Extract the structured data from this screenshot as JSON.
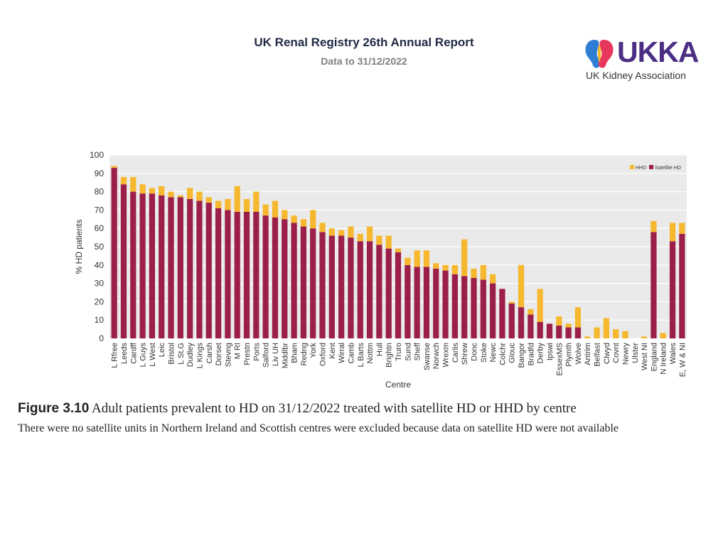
{
  "header": {
    "title": "UK Renal Registry 26th Annual Report",
    "subtitle": "Data to 31/12/2022"
  },
  "logo": {
    "wordmark": "UKKA",
    "name": "UK Kidney Association"
  },
  "caption": {
    "figure_label": "Figure 3.10",
    "title": "Adult patients prevalent to HD on 31/12/2022 treated with satellite HD or HHD by centre",
    "note": "There were no satellite units in Northern Ireland and Scottish centres were excluded because data on satellite HD were not available"
  },
  "colors": {
    "satellite": "#9c1f4a",
    "hhd": "#f5b82e",
    "grid": "#ffffff",
    "plot_bg": "#eaeaea"
  },
  "chart_data": {
    "type": "bar",
    "stacked": true,
    "title": "",
    "xlabel": "Centre",
    "ylabel": "% HD patients",
    "ylim": [
      0,
      100
    ],
    "yticks": [
      0,
      10,
      20,
      30,
      40,
      50,
      60,
      70,
      80,
      90,
      100
    ],
    "legend": {
      "position": "top-right",
      "entries": [
        "HHD",
        "Satellite HD"
      ]
    },
    "categories": [
      "L Rfree",
      "Leeds",
      "Cardff",
      "L Guys",
      "L West",
      "Leic",
      "Bristol",
      "L St.G",
      "Dudley",
      "L Kings",
      "Carsh",
      "Dorset",
      "Stevng",
      "M RI",
      "Prestn",
      "Ports",
      "Salford",
      "Liv UH",
      "Middlbr",
      "Bham",
      "Redng",
      "York",
      "Oxford",
      "Kent",
      "Wirral",
      "Camb",
      "L Barts",
      "Nottm",
      "Hull",
      "Brightn",
      "Truro",
      "Sund",
      "Sheff",
      "Swanse",
      "Norwch",
      "Wrexm",
      "Carlis",
      "Shrew",
      "Donc",
      "Stoke",
      "Newc",
      "Colchr",
      "Glouc",
      "Bangor",
      "Bradfd",
      "Derby",
      "Ipswi",
      "EssexMS",
      "Plymth",
      "Wolve",
      "Antrim",
      "Belfast",
      "Clwyd",
      "Covnt",
      "Newry",
      "Ulster",
      "West NI",
      "England",
      "N Ireland",
      "Wales",
      "E, W & NI"
    ],
    "series": [
      {
        "name": "Satellite HD",
        "values": [
          93,
          84,
          80,
          79,
          79,
          78,
          77,
          77,
          76,
          75,
          74,
          71,
          70,
          69,
          69,
          69,
          67,
          66,
          65,
          63,
          61,
          60,
          58,
          56,
          56,
          55,
          53,
          53,
          51,
          49,
          47,
          40,
          39,
          39,
          38,
          37,
          35,
          34,
          33,
          32,
          30,
          27,
          19,
          17,
          13,
          9,
          8,
          7,
          6,
          6,
          0,
          0,
          0,
          0,
          0,
          0,
          0,
          58,
          0,
          53,
          57
        ]
      },
      {
        "name": "HHD",
        "values": [
          1,
          4,
          8,
          5,
          3,
          5,
          3,
          1,
          6,
          5,
          3,
          4,
          6,
          14,
          7,
          11,
          6,
          9,
          5,
          4,
          4,
          10,
          5,
          4,
          3,
          6,
          4,
          8,
          5,
          7,
          2,
          4,
          9,
          9,
          3,
          3,
          5,
          20,
          5,
          8,
          5,
          0,
          1,
          23,
          3,
          18,
          0,
          5,
          2,
          11,
          1,
          6,
          11,
          5,
          4,
          0,
          1,
          6,
          3,
          10,
          6
        ]
      }
    ]
  }
}
